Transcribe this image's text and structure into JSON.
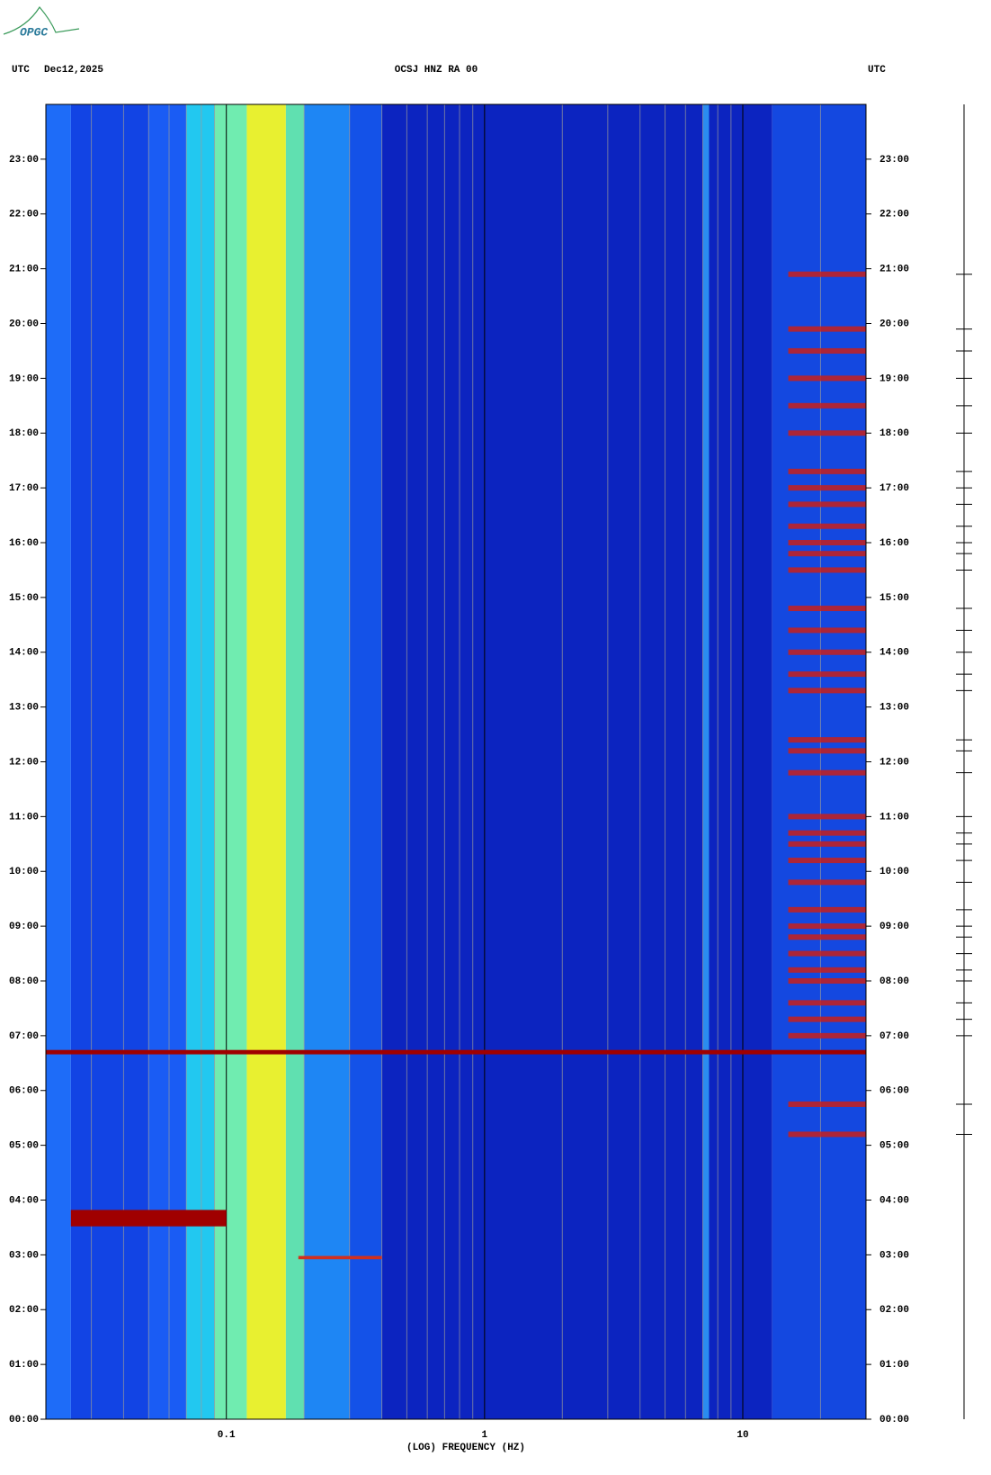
{
  "logo": "OPGC",
  "chart_data": {
    "type": "spectrogram",
    "title": "OCSJ HNZ RA 00",
    "time_zone": "UTC",
    "date": "Dec12,2025",
    "x_label": "(LOG) FREQUENCY (HZ)",
    "x_scale": "log",
    "xlim": [
      0.02,
      30
    ],
    "xticks": [
      {
        "value": 0.1,
        "label": "0.1"
      },
      1,
      10
    ],
    "minor_xticks": [
      0.03,
      0.04,
      0.05,
      0.06,
      0.07,
      0.08,
      0.09,
      0.2,
      0.3,
      0.4,
      0.5,
      0.6,
      0.7,
      0.8,
      0.9,
      2,
      3,
      4,
      5,
      6,
      7,
      8,
      9,
      20
    ],
    "grid_color": "#9a9a9a",
    "ylim": [
      0,
      24
    ],
    "yticks": [
      {
        "value": 0,
        "label": "00:00"
      },
      {
        "value": 1,
        "label": "01:00"
      },
      {
        "value": 2,
        "label": "02:00"
      },
      {
        "value": 3,
        "label": "03:00"
      },
      {
        "value": 4,
        "label": "04:00"
      },
      {
        "value": 5,
        "label": "05:00"
      },
      {
        "value": 6,
        "label": "06:00"
      },
      {
        "value": 7,
        "label": "07:00"
      },
      {
        "value": 8,
        "label": "08:00"
      },
      {
        "value": 9,
        "label": "09:00"
      },
      {
        "value": 10,
        "label": "10:00"
      },
      {
        "value": 11,
        "label": "11:00"
      },
      {
        "value": 12,
        "label": "12:00"
      },
      {
        "value": 13,
        "label": "13:00"
      },
      {
        "value": 14,
        "label": "14:00"
      },
      {
        "value": 15,
        "label": "15:00"
      },
      {
        "value": 16,
        "label": "16:00"
      },
      {
        "value": 17,
        "label": "17:00"
      },
      {
        "value": 18,
        "label": "18:00"
      },
      {
        "value": 19,
        "label": "19:00"
      },
      {
        "value": 20,
        "label": "20:00"
      },
      {
        "value": 21,
        "label": "21:00"
      },
      {
        "value": 22,
        "label": "22:00"
      },
      {
        "value": 23,
        "label": "23:00"
      }
    ],
    "bands": [
      {
        "flim": [
          0.02,
          0.025
        ],
        "color": "#1e6cf8"
      },
      {
        "flim": [
          0.025,
          0.05
        ],
        "color": "#1244e4"
      },
      {
        "flim": [
          0.05,
          0.07
        ],
        "color": "#1a5cf4"
      },
      {
        "flim": [
          0.07,
          0.09
        ],
        "color": "#22c8f0"
      },
      {
        "flim": [
          0.09,
          0.12
        ],
        "color": "#70ecb0"
      },
      {
        "flim": [
          0.12,
          0.17
        ],
        "color": "#e8f030"
      },
      {
        "flim": [
          0.17,
          0.2
        ],
        "color": "#60e0b0"
      },
      {
        "flim": [
          0.2,
          0.3
        ],
        "color": "#1e86f4"
      },
      {
        "flim": [
          0.3,
          0.4
        ],
        "color": "#1452e8"
      },
      {
        "flim": [
          0.4,
          13
        ],
        "color": "#0c24c0"
      },
      {
        "flim": [
          7,
          7.4
        ],
        "color": "#2a8cf0"
      },
      {
        "flim": [
          13,
          30
        ],
        "color": "#1448e0"
      }
    ],
    "events": [
      {
        "tlim": [
          6.66,
          6.74
        ],
        "flim": [
          0.02,
          30
        ],
        "color": "#a00000"
      },
      {
        "tlim": [
          3.52,
          3.82
        ],
        "flim": [
          0.025,
          0.1
        ],
        "color": "#a00000"
      },
      {
        "tlim": [
          2.92,
          2.98
        ],
        "flim": [
          0.19,
          0.4
        ],
        "color": "#d03020"
      }
    ],
    "hf_events": {
      "flim": [
        15,
        30
      ],
      "color": "#c8201a",
      "times": [
        5.2,
        5.75,
        7.0,
        7.3,
        7.6,
        8.0,
        8.2,
        8.5,
        8.8,
        9.0,
        9.3,
        9.8,
        10.2,
        10.5,
        10.7,
        11.0,
        11.8,
        12.2,
        12.4,
        13.3,
        13.6,
        14.0,
        14.4,
        14.8,
        15.5,
        15.8,
        16.0,
        16.3,
        16.7,
        17.0,
        17.3,
        18.0,
        18.5,
        19.0,
        19.5,
        19.9,
        20.9
      ]
    }
  }
}
